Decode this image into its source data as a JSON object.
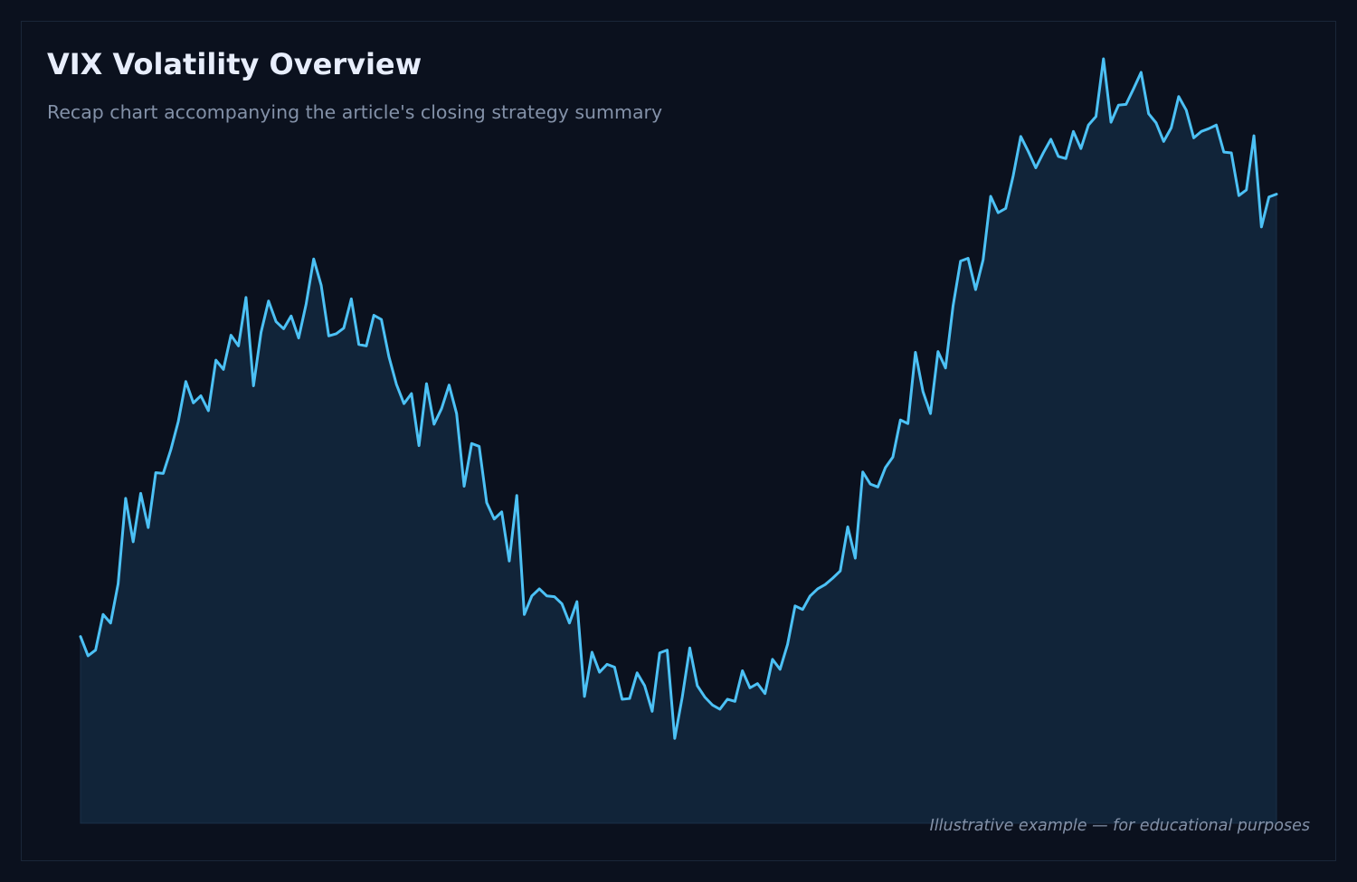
{
  "colors": {
    "background": "#0b111e",
    "line": "#4cc1f5",
    "fill": "#12263b",
    "title": "#e8eefc",
    "subtitle": "#8391a8"
  },
  "header": {
    "title": "VIX Volatility Overview",
    "subtitle": "Recap chart accompanying the article's closing strategy summary"
  },
  "footnote": "Illustrative example — for educational purposes",
  "chart_data": {
    "type": "area",
    "title": "VIX Volatility Overview",
    "subtitle": "Recap chart accompanying the article's closing strategy summary",
    "xlabel": "",
    "ylabel": "",
    "grid": false,
    "legend": "none",
    "ylim": [
      0,
      100
    ],
    "series": [
      {
        "values": [
          26.2,
          23.5,
          24.3,
          29.3,
          28.1,
          33.6,
          45.6,
          39.5,
          46.3,
          41.5,
          49.2,
          49.1,
          52.4,
          56.4,
          62.0,
          59.0,
          60.0,
          57.9,
          65.0,
          63.7,
          68.5,
          67.0,
          73.8,
          61.4,
          68.9,
          73.3,
          70.4,
          69.4,
          71.2,
          68.1,
          72.9,
          79.2,
          75.5,
          68.4,
          68.7,
          69.5,
          73.6,
          67.2,
          67.0,
          71.3,
          70.7,
          65.5,
          61.6,
          58.9,
          60.3,
          53.0,
          61.7,
          56.0,
          58.2,
          61.5,
          57.5,
          47.3,
          53.3,
          52.9,
          45.0,
          42.7,
          43.7,
          36.8,
          46.0,
          29.3,
          31.9,
          32.9,
          31.9,
          31.8,
          30.8,
          28.1,
          31.1,
          17.8,
          24.0,
          21.2,
          22.3,
          21.9,
          17.4,
          17.5,
          21.1,
          19.3,
          15.7,
          23.9,
          24.3,
          11.9,
          17.7,
          24.6,
          19.3,
          17.7,
          16.6,
          16.0,
          17.4,
          17.1,
          21.4,
          19.0,
          19.6,
          18.2,
          23.0,
          21.6,
          25.1,
          30.5,
          30.0,
          31.9,
          32.9,
          33.5,
          34.4,
          35.4,
          41.6,
          37.2,
          49.3,
          47.6,
          47.2,
          49.9,
          51.4,
          56.6,
          56.1,
          66.1,
          60.6,
          57.5,
          66.2,
          63.9,
          72.6,
          78.9,
          79.3,
          74.9,
          79.1,
          88.0,
          85.7,
          86.3,
          90.9,
          96.4,
          94.3,
          92.0,
          94.1,
          96.0,
          93.6,
          93.3,
          97.1,
          94.7,
          98.0,
          99.2,
          107.3,
          98.4,
          100.8,
          100.9,
          103.1,
          105.4,
          99.6,
          98.3,
          95.7,
          97.6,
          102.0,
          100.1,
          96.2,
          97.1,
          97.5,
          98.0,
          94.2,
          94.1,
          88.1,
          88.9,
          96.5,
          83.7,
          87.9,
          88.3
        ]
      }
    ]
  }
}
